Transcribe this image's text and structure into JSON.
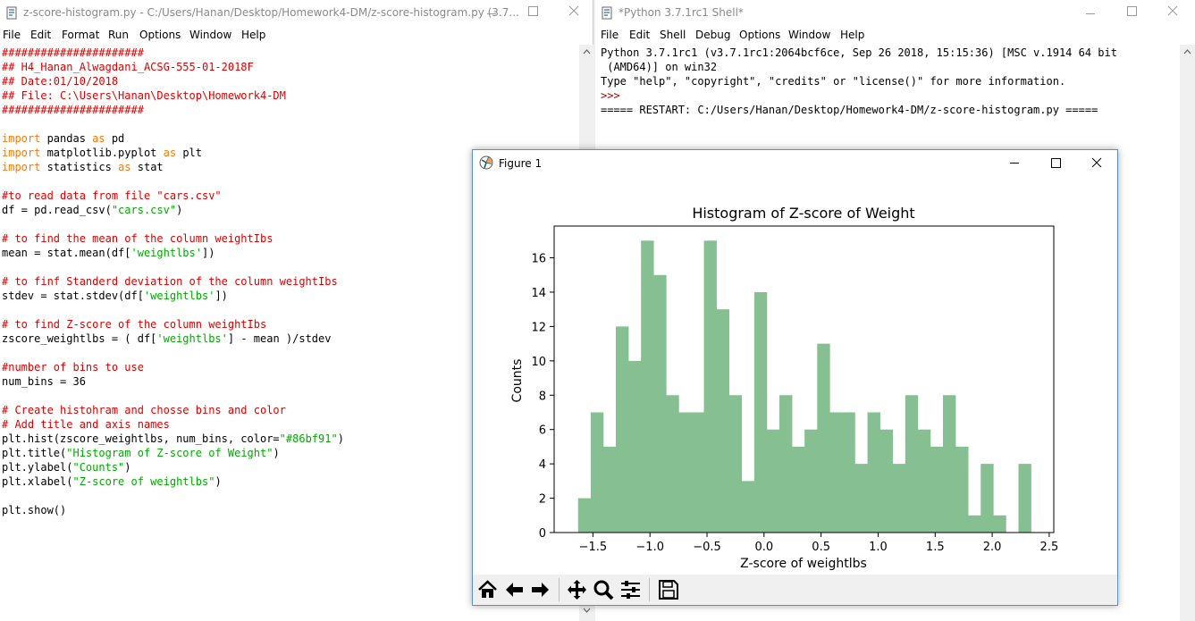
{
  "editor": {
    "title": "z-score-histogram.py - C:/Users/Hanan/Desktop/Homework4-DM/z-score-histogram.py (3.7...",
    "menu": [
      "File",
      "Edit",
      "Format",
      "Run",
      "Options",
      "Window",
      "Help"
    ],
    "lines": [
      [
        {
          "t": "######################",
          "c": "com"
        }
      ],
      [
        {
          "t": "## H4_Hanan_Alwagdani_ACSG-555-01-2018F",
          "c": "com"
        }
      ],
      [
        {
          "t": "## Date:01/10/2018",
          "c": "com"
        }
      ],
      [
        {
          "t": "## File: C:\\Users\\Hanan\\Desktop\\Homework4-DM",
          "c": "com"
        }
      ],
      [
        {
          "t": "######################",
          "c": "com"
        }
      ],
      [],
      [
        {
          "t": "import",
          "c": "kw"
        },
        {
          "t": " pandas "
        },
        {
          "t": "as",
          "c": "kw"
        },
        {
          "t": " pd"
        }
      ],
      [
        {
          "t": "import",
          "c": "kw"
        },
        {
          "t": " matplotlib.pyplot "
        },
        {
          "t": "as",
          "c": "kw"
        },
        {
          "t": " plt"
        }
      ],
      [
        {
          "t": "import",
          "c": "kw"
        },
        {
          "t": " statistics "
        },
        {
          "t": "as",
          "c": "kw"
        },
        {
          "t": " stat"
        }
      ],
      [],
      [
        {
          "t": "#to read data from file \"cars.csv\"",
          "c": "com"
        }
      ],
      [
        {
          "t": "df = pd.read_csv("
        },
        {
          "t": "\"cars.csv\"",
          "c": "str"
        },
        {
          "t": ")"
        }
      ],
      [],
      [
        {
          "t": "# to find the mean of the column weightIbs",
          "c": "com"
        }
      ],
      [
        {
          "t": "mean = stat.mean(df["
        },
        {
          "t": "'weightlbs'",
          "c": "str"
        },
        {
          "t": "])"
        }
      ],
      [],
      [
        {
          "t": "# to finf Standerd deviation of the column weightIbs",
          "c": "com"
        }
      ],
      [
        {
          "t": "stdev = stat.stdev(df["
        },
        {
          "t": "'weightlbs'",
          "c": "str"
        },
        {
          "t": "])"
        }
      ],
      [],
      [
        {
          "t": "# to find Z-score of the column weightIbs",
          "c": "com"
        }
      ],
      [
        {
          "t": "zscore_weightlbs = ( df["
        },
        {
          "t": "'weightlbs'",
          "c": "str"
        },
        {
          "t": "] - mean )/stdev"
        }
      ],
      [],
      [
        {
          "t": "#number of bins to use",
          "c": "com"
        }
      ],
      [
        {
          "t": "num_bins = 36"
        }
      ],
      [],
      [
        {
          "t": "# Create histohram and chosse bins and color",
          "c": "com"
        }
      ],
      [
        {
          "t": "# Add title and axis names",
          "c": "com"
        }
      ],
      [
        {
          "t": "plt.hist(zscore_weightlbs, num_bins, color="
        },
        {
          "t": "\"#86bf91\"",
          "c": "str"
        },
        {
          "t": ")"
        }
      ],
      [
        {
          "t": "plt.title("
        },
        {
          "t": "\"Histogram of Z-score of Weight\"",
          "c": "str"
        },
        {
          "t": ")"
        }
      ],
      [
        {
          "t": "plt.ylabel("
        },
        {
          "t": "\"Counts\"",
          "c": "str"
        },
        {
          "t": ")"
        }
      ],
      [
        {
          "t": "plt.xlabel("
        },
        {
          "t": "\"Z-score of weightlbs\"",
          "c": "str"
        },
        {
          "t": ")"
        }
      ],
      [],
      [
        {
          "t": "plt.show()"
        }
      ]
    ]
  },
  "shell": {
    "title": "*Python 3.7.1rc1 Shell*",
    "menu": [
      "File",
      "Edit",
      "Shell",
      "Debug",
      "Options",
      "Window",
      "Help"
    ],
    "lines": [
      [
        {
          "t": "Python 3.7.1rc1 (v3.7.1rc1:2064bcf6ce, Sep 26 2018, 15:15:36) [MSC v.1914 64 bit"
        }
      ],
      [
        {
          "t": " (AMD64)] on win32"
        }
      ],
      [
        {
          "t": "Type \"help\", \"copyright\", \"credits\" or \"license()\" for more information."
        }
      ],
      [
        {
          "t": ">>> ",
          "c": "prompt"
        }
      ],
      [
        {
          "t": "===== RESTART: C:/Users/Hanan/Desktop/Homework4-DM/z-score-histogram.py ====="
        }
      ]
    ]
  },
  "figure": {
    "title": "Figure 1",
    "toolbar": [
      "home-icon",
      "back-icon",
      "forward-icon",
      "pan-icon",
      "zoom-icon",
      "configure-subplots-icon",
      "save-icon"
    ]
  },
  "chart_data": {
    "type": "bar",
    "title": "Histogram of Z-score of Weight",
    "xlabel": "Z-score of weightlbs",
    "ylabel": "Counts",
    "color": "#86bf91",
    "bin_start": -1.63,
    "bin_width": 0.1103,
    "values": [
      2,
      7,
      5,
      12,
      10,
      17,
      15,
      8,
      7,
      7,
      17,
      13,
      8,
      3,
      14,
      6,
      8,
      5,
      6,
      11,
      7,
      7,
      4,
      7,
      6,
      4,
      8,
      6,
      5,
      8,
      5,
      1,
      4,
      1,
      0,
      4
    ],
    "xlim": [
      -1.84,
      2.54
    ],
    "ylim": [
      0,
      17.85
    ],
    "xticks": [
      -1.5,
      -1.0,
      -0.5,
      0.0,
      0.5,
      1.0,
      1.5,
      2.0,
      2.5
    ],
    "xtick_labels": [
      "−1.5",
      "−1.0",
      "−0.5",
      "0.0",
      "0.5",
      "1.0",
      "1.5",
      "2.0",
      "2.5"
    ],
    "yticks": [
      0,
      2,
      4,
      6,
      8,
      10,
      12,
      14,
      16
    ],
    "ytick_labels": [
      "0",
      "2",
      "4",
      "6",
      "8",
      "10",
      "12",
      "14",
      "16"
    ],
    "grid": false
  }
}
